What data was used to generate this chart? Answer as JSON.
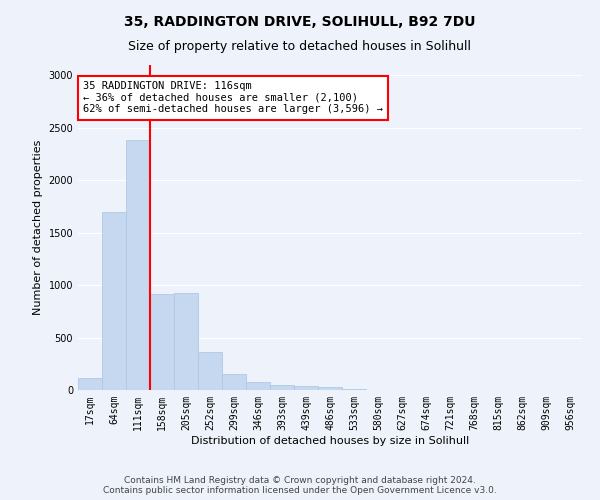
{
  "title_line1": "35, RADDINGTON DRIVE, SOLIHULL, B92 7DU",
  "title_line2": "Size of property relative to detached houses in Solihull",
  "xlabel": "Distribution of detached houses by size in Solihull",
  "ylabel": "Number of detached properties",
  "categories": [
    "17sqm",
    "64sqm",
    "111sqm",
    "158sqm",
    "205sqm",
    "252sqm",
    "299sqm",
    "346sqm",
    "393sqm",
    "439sqm",
    "486sqm",
    "533sqm",
    "580sqm",
    "627sqm",
    "674sqm",
    "721sqm",
    "768sqm",
    "815sqm",
    "862sqm",
    "909sqm",
    "956sqm"
  ],
  "values": [
    110,
    1700,
    2380,
    920,
    930,
    360,
    155,
    75,
    50,
    40,
    30,
    5,
    3,
    2,
    1,
    1,
    0,
    0,
    0,
    0,
    0
  ],
  "bar_color": "#c5d8f0",
  "bar_edge_color": "#a8c4e0",
  "ylim": [
    0,
    3100
  ],
  "yticks": [
    0,
    500,
    1000,
    1500,
    2000,
    2500,
    3000
  ],
  "vline_x": 2.5,
  "vline_color": "red",
  "vline_linewidth": 1.5,
  "annotation_text": "35 RADDINGTON DRIVE: 116sqm\n← 36% of detached houses are smaller (2,100)\n62% of semi-detached houses are larger (3,596) →",
  "annotation_box_color": "white",
  "annotation_box_edge_color": "red",
  "footer_line1": "Contains HM Land Registry data © Crown copyright and database right 2024.",
  "footer_line2": "Contains public sector information licensed under the Open Government Licence v3.0.",
  "background_color": "#eef2fa",
  "grid_color": "white",
  "title_fontsize": 10,
  "subtitle_fontsize": 9,
  "axis_label_fontsize": 8,
  "tick_fontsize": 7,
  "annotation_fontsize": 7.5,
  "footer_fontsize": 6.5
}
